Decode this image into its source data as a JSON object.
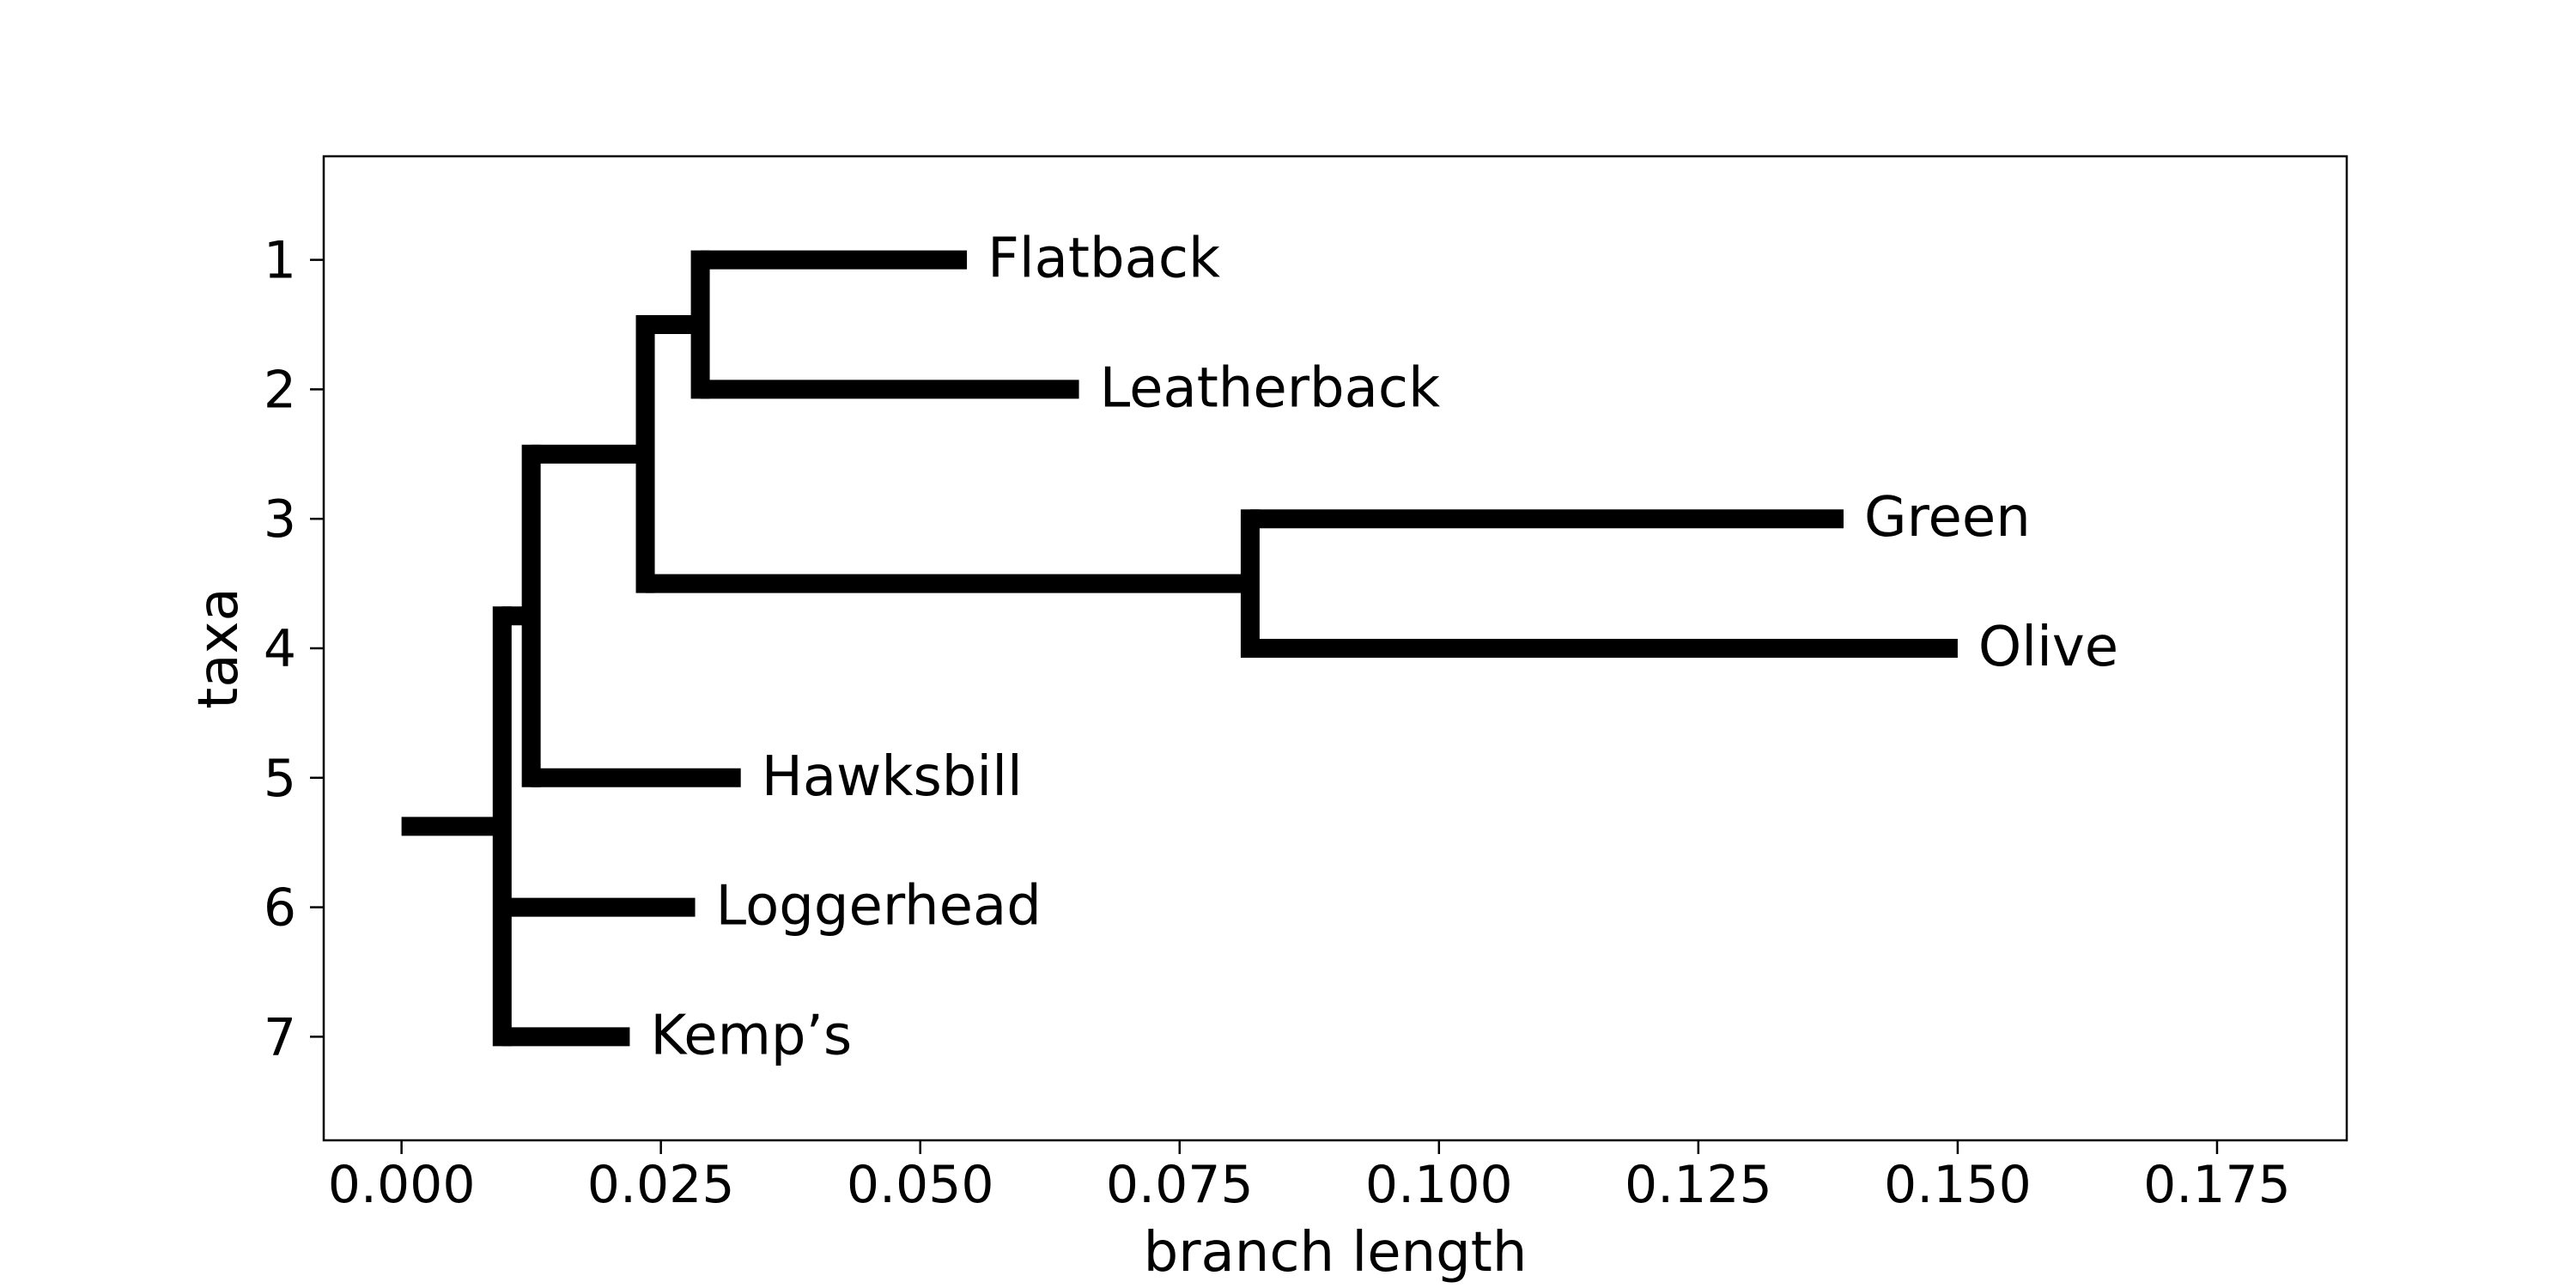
{
  "chart_data": {
    "type": "tree",
    "xlabel": "branch length",
    "ylabel": "taxa",
    "xlim": [
      -0.0075,
      0.1875
    ],
    "ylim": [
      7.8,
      0.2
    ],
    "xticks": [
      0.0,
      0.025,
      0.05,
      0.075,
      0.1,
      0.125,
      0.15,
      0.175
    ],
    "xtick_labels": [
      "0.000",
      "0.025",
      "0.050",
      "0.075",
      "0.100",
      "0.125",
      "0.150",
      "0.175"
    ],
    "yticks": [
      1,
      2,
      3,
      4,
      5,
      6,
      7
    ],
    "ytick_labels": [
      "1",
      "2",
      "3",
      "4",
      "5",
      "6",
      "7"
    ],
    "grid": false,
    "line_color": "#000000",
    "branches": [
      {
        "x0": 0.0,
        "x1": 0.0097,
        "y": 5.375
      },
      {
        "x0": 0.0097,
        "x1": 0.0125,
        "y": 3.75
      },
      {
        "x0": 0.0097,
        "x1": 0.0283,
        "y": 6
      },
      {
        "x0": 0.0097,
        "x1": 0.022,
        "y": 7
      },
      {
        "x0": 0.0125,
        "x1": 0.0235,
        "y": 2.5
      },
      {
        "x0": 0.0125,
        "x1": 0.0327,
        "y": 5
      },
      {
        "x0": 0.0235,
        "x1": 0.0288,
        "y": 1.5
      },
      {
        "x0": 0.0235,
        "x1": 0.0818,
        "y": 3.5
      },
      {
        "x0": 0.0288,
        "x1": 0.0545,
        "y": 1
      },
      {
        "x0": 0.0288,
        "x1": 0.0653,
        "y": 2
      },
      {
        "x0": 0.0818,
        "x1": 0.139,
        "y": 3
      },
      {
        "x0": 0.0818,
        "x1": 0.15,
        "y": 4
      }
    ],
    "connectors": [
      {
        "x": 0.0097,
        "y0": 3.75,
        "y1": 7
      },
      {
        "x": 0.0125,
        "y0": 2.5,
        "y1": 5
      },
      {
        "x": 0.0235,
        "y0": 1.5,
        "y1": 3.5
      },
      {
        "x": 0.0288,
        "y0": 1,
        "y1": 2
      },
      {
        "x": 0.0818,
        "y0": 3,
        "y1": 4
      }
    ],
    "taxa": [
      {
        "name": "Flatback",
        "x": 0.0545,
        "y": 1
      },
      {
        "name": "Leatherback",
        "x": 0.0653,
        "y": 2
      },
      {
        "name": "Green",
        "x": 0.139,
        "y": 3
      },
      {
        "name": "Olive",
        "x": 0.15,
        "y": 4
      },
      {
        "name": "Hawksbill",
        "x": 0.0327,
        "y": 5
      },
      {
        "name": "Loggerhead",
        "x": 0.0283,
        "y": 6
      },
      {
        "name": "Kemp’s",
        "x": 0.022,
        "y": 7
      }
    ]
  }
}
